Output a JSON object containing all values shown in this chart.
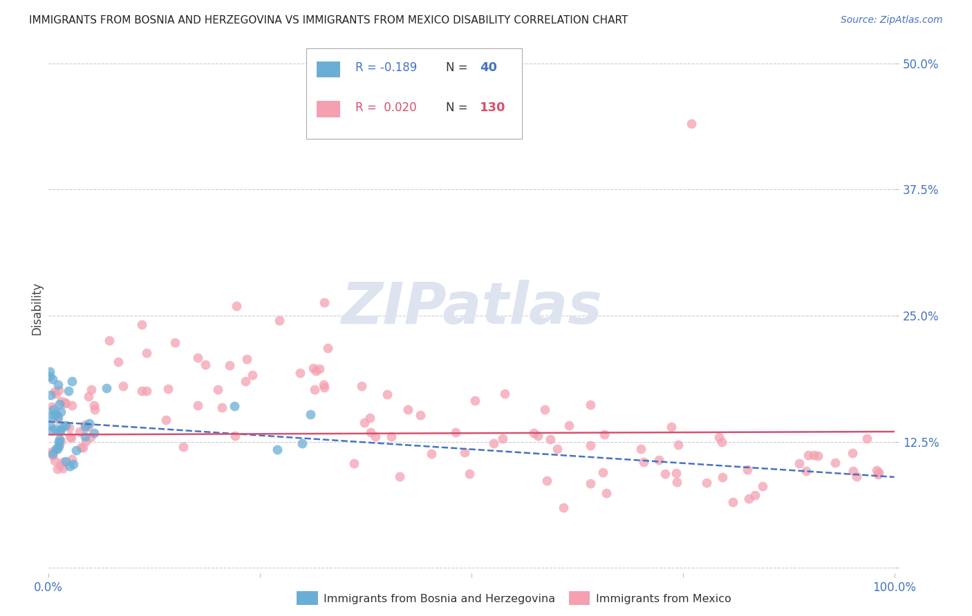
{
  "title": "IMMIGRANTS FROM BOSNIA AND HERZEGOVINA VS IMMIGRANTS FROM MEXICO DISABILITY CORRELATION CHART",
  "source": "Source: ZipAtlas.com",
  "ylabel": "Disability",
  "R_bosnia": -0.189,
  "N_bosnia": 40,
  "R_mexico": 0.02,
  "N_mexico": 130,
  "bosnia_color": "#6aaed6",
  "mexico_color": "#f4a0b0",
  "bosnia_line_color": "#4472c4",
  "mexico_line_color": "#d94f6e",
  "axis_label_color": "#4472c4",
  "title_color": "#222222",
  "watermark_color": "#dde4ef",
  "background_color": "#ffffff",
  "grid_color": "#cccccc"
}
